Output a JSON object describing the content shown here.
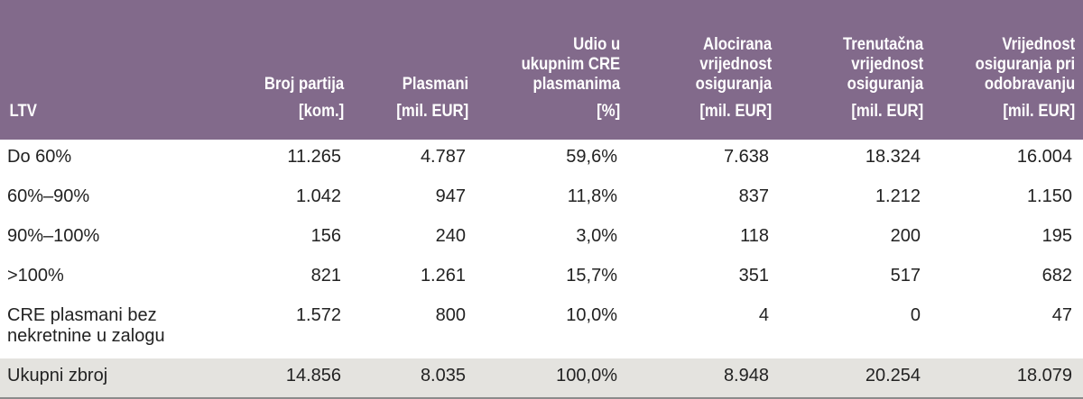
{
  "table": {
    "header": {
      "columns": [
        {
          "title": "",
          "unit": "LTV"
        },
        {
          "title": "Broj partija",
          "unit": "[kom.]"
        },
        {
          "title": "Plasmani",
          "unit": "[mil. EUR]"
        },
        {
          "title_lines": [
            "Udio u",
            "ukupnim CRE",
            "plasmanima"
          ],
          "unit": "[%]"
        },
        {
          "title_lines": [
            "Alocirana",
            "vrijednost",
            "osiguranja"
          ],
          "unit": "[mil. EUR]"
        },
        {
          "title_lines": [
            "Trenutačna",
            "vrijednost",
            "osiguranja"
          ],
          "unit": "[mil. EUR]"
        },
        {
          "title_lines": [
            "Vrijednost",
            "osiguranja pri",
            "odobravanju"
          ],
          "unit": "[mil. EUR]"
        }
      ]
    },
    "rows": [
      [
        "Do 60%",
        "11.265",
        "4.787",
        "59,6%",
        "7.638",
        "18.324",
        "16.004"
      ],
      [
        "60%–90%",
        "1.042",
        "947",
        "11,8%",
        "837",
        "1.212",
        "1.150"
      ],
      [
        "90%–100%",
        "156",
        "240",
        "3,0%",
        "118",
        "200",
        "195"
      ],
      [
        ">100%",
        "821",
        "1.261",
        "15,7%",
        "351",
        "517",
        "682"
      ],
      [
        "CRE plasmani bez nekretnine u zalogu",
        "1.572",
        "800",
        "10,0%",
        "4",
        "0",
        "47"
      ]
    ],
    "total": [
      "Ukupni zbroj",
      "14.856",
      "8.035",
      "100,0%",
      "8.948",
      "20.254",
      "18.079"
    ]
  }
}
